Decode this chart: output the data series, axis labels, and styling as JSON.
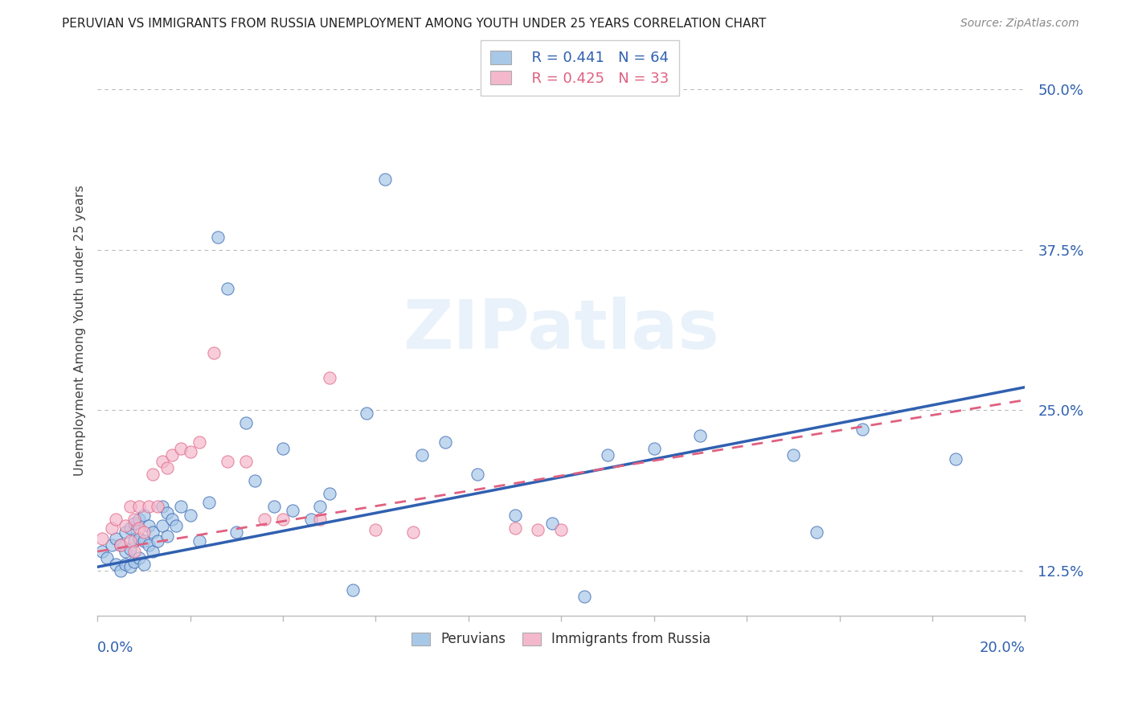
{
  "title": "PERUVIAN VS IMMIGRANTS FROM RUSSIA UNEMPLOYMENT AMONG YOUTH UNDER 25 YEARS CORRELATION CHART",
  "source": "Source: ZipAtlas.com",
  "ylabel": "Unemployment Among Youth under 25 years",
  "xlim": [
    0.0,
    0.2
  ],
  "ylim": [
    0.09,
    0.535
  ],
  "yticks": [
    0.125,
    0.25,
    0.375,
    0.5
  ],
  "ytick_labels": [
    "12.5%",
    "25.0%",
    "37.5%",
    "50.0%"
  ],
  "legend_r1": "R = 0.441",
  "legend_n1": "N = 64",
  "legend_r2": "R = 0.425",
  "legend_n2": "N = 33",
  "color_blue": "#a8c8e8",
  "color_pink": "#f4b8cc",
  "color_blue_dark": "#3060b0",
  "color_pink_dark": "#e06080",
  "color_blue_text": "#3060b0",
  "watermark": "ZIPatlas",
  "blue_trend_x0": 0.0,
  "blue_trend_y0": 0.128,
  "blue_trend_x1": 0.2,
  "blue_trend_y1": 0.268,
  "pink_trend_x0": 0.0,
  "pink_trend_y0": 0.14,
  "pink_trend_x1": 0.2,
  "pink_trend_y1": 0.258,
  "blue_scatter_x": [
    0.001,
    0.002,
    0.003,
    0.004,
    0.004,
    0.005,
    0.005,
    0.006,
    0.006,
    0.006,
    0.007,
    0.007,
    0.007,
    0.008,
    0.008,
    0.008,
    0.009,
    0.009,
    0.009,
    0.01,
    0.01,
    0.01,
    0.011,
    0.011,
    0.012,
    0.012,
    0.013,
    0.014,
    0.014,
    0.015,
    0.015,
    0.016,
    0.017,
    0.018,
    0.02,
    0.022,
    0.024,
    0.026,
    0.028,
    0.03,
    0.032,
    0.034,
    0.038,
    0.04,
    0.042,
    0.046,
    0.048,
    0.05,
    0.055,
    0.058,
    0.062,
    0.07,
    0.075,
    0.082,
    0.09,
    0.098,
    0.105,
    0.11,
    0.12,
    0.13,
    0.15,
    0.155,
    0.165,
    0.185
  ],
  "blue_scatter_y": [
    0.14,
    0.135,
    0.145,
    0.13,
    0.15,
    0.125,
    0.145,
    0.13,
    0.14,
    0.155,
    0.128,
    0.142,
    0.158,
    0.132,
    0.148,
    0.162,
    0.135,
    0.15,
    0.165,
    0.13,
    0.148,
    0.168,
    0.145,
    0.16,
    0.14,
    0.155,
    0.148,
    0.16,
    0.175,
    0.152,
    0.17,
    0.165,
    0.16,
    0.175,
    0.168,
    0.148,
    0.178,
    0.385,
    0.345,
    0.155,
    0.24,
    0.195,
    0.175,
    0.22,
    0.172,
    0.165,
    0.175,
    0.185,
    0.11,
    0.248,
    0.43,
    0.215,
    0.225,
    0.2,
    0.168,
    0.162,
    0.105,
    0.215,
    0.22,
    0.23,
    0.215,
    0.155,
    0.235,
    0.212
  ],
  "pink_scatter_x": [
    0.001,
    0.003,
    0.004,
    0.005,
    0.006,
    0.007,
    0.007,
    0.008,
    0.008,
    0.009,
    0.009,
    0.01,
    0.011,
    0.012,
    0.013,
    0.014,
    0.015,
    0.016,
    0.018,
    0.02,
    0.022,
    0.025,
    0.028,
    0.032,
    0.036,
    0.04,
    0.048,
    0.05,
    0.06,
    0.068,
    0.09,
    0.095,
    0.1
  ],
  "pink_scatter_y": [
    0.15,
    0.158,
    0.165,
    0.145,
    0.16,
    0.148,
    0.175,
    0.14,
    0.165,
    0.158,
    0.175,
    0.155,
    0.175,
    0.2,
    0.175,
    0.21,
    0.205,
    0.215,
    0.22,
    0.218,
    0.225,
    0.295,
    0.21,
    0.21,
    0.165,
    0.165,
    0.165,
    0.275,
    0.157,
    0.155,
    0.158,
    0.157,
    0.157
  ]
}
